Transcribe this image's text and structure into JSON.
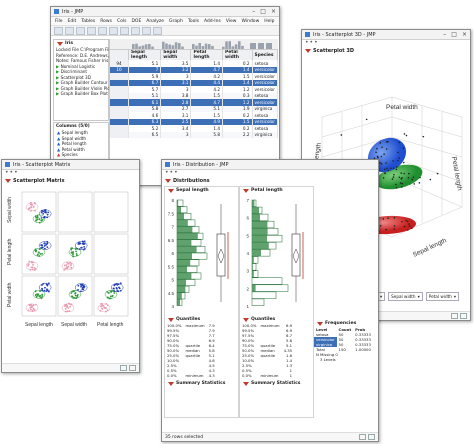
{
  "jmp": {
    "title": "Iris - JMP",
    "menu": [
      "File",
      "Edit",
      "Tables",
      "Rows",
      "Cols",
      "DOE",
      "Analyze",
      "Graph",
      "Tools",
      "Add-Ins",
      "View",
      "Window",
      "Help"
    ],
    "table_name": "Iris",
    "notes": [
      "Locked File C:\\Program Files\\SA",
      "Reference: D.E. Andrews, D.F. an",
      "Notes: Famous Fisher Iris data,"
    ],
    "scripts": [
      "Nominal Logistic",
      "Discriminant",
      "Scatterplot 3D",
      "Graph Builder Contour Plot",
      "Graph Builder Violin Plot",
      "Graph Builder Box Plot"
    ],
    "columns_label": "Columns (5/0)",
    "columns": [
      "Sepal length",
      "Sepal width",
      "Petal length",
      "Petal width",
      "Species"
    ],
    "headers": [
      "Sepal length",
      "Sepal width",
      "Petal length",
      "Petal width",
      "Species"
    ],
    "rows": [
      {
        "n": "94",
        "sl": "5.1",
        "sw": "3.5",
        "pl": "1.4",
        "pw": "0.2",
        "sp": "setosa",
        "sel": false
      },
      {
        "n": "10",
        "sl": "7",
        "sw": "3.2",
        "pl": "4.7",
        "pw": "1.4",
        "sp": "versicolor",
        "sel": true
      },
      {
        "n": "",
        "sl": "5.9",
        "sw": "3",
        "pl": "4.2",
        "pw": "1.5",
        "sp": "versicolor",
        "sel": false
      },
      {
        "n": "",
        "sl": "6.7",
        "sw": "3.1",
        "pl": "4.4",
        "pw": "1.4",
        "sp": "versicolor",
        "sel": true
      },
      {
        "n": "",
        "sl": "5.7",
        "sw": "3",
        "pl": "4.2",
        "pw": "1.2",
        "sp": "versicolor",
        "sel": false
      },
      {
        "n": "",
        "sl": "5.1",
        "sw": "3.8",
        "pl": "1.5",
        "pw": "0.3",
        "sp": "setosa",
        "sel": false
      },
      {
        "n": "",
        "sl": "6.1",
        "sw": "2.8",
        "pl": "4.7",
        "pw": "1.2",
        "sp": "versicolor",
        "sel": true
      },
      {
        "n": "",
        "sl": "5.8",
        "sw": "2.7",
        "pl": "5.1",
        "pw": "1.9",
        "sp": "virginica",
        "sel": false
      },
      {
        "n": "",
        "sl": "4.6",
        "sw": "3.1",
        "pl": "1.5",
        "pw": "0.2",
        "sp": "setosa",
        "sel": false
      },
      {
        "n": "",
        "sl": "6.3",
        "sw": "2.5",
        "pl": "4.9",
        "pw": "1.5",
        "sp": "versicolor",
        "sel": true
      },
      {
        "n": "",
        "sl": "5.2",
        "sw": "3.4",
        "pl": "1.4",
        "pw": "0.2",
        "sp": "setosa",
        "sel": false
      },
      {
        "n": "",
        "sl": "6.5",
        "sw": "3",
        "pl": "5.8",
        "pw": "2.2",
        "sp": "virginica",
        "sel": false
      }
    ]
  },
  "scatter3d": {
    "title": "Iris - Scatterplot 3D - JMP",
    "outline": "Scatterplot 3D",
    "axes": {
      "petal_width": "Petal width",
      "petal_length": "Petal length",
      "sepal_length": "Sepal length"
    },
    "controls": [
      "Data Columns",
      "Sepal length",
      "Sepal width",
      "Petal width"
    ],
    "size_label": "582 × 582"
  },
  "matrix": {
    "title": "Iris - Scatterplot Matrix",
    "outline": "Scatterplot Matrix",
    "row_labels": [
      "Sepal width",
      "Petal length",
      "Petal width"
    ],
    "col_labels": [
      "Sepal length",
      "Sepal width",
      "Petal length"
    ]
  },
  "dist": {
    "title": "Iris - Distribution - JMP",
    "outline": "Distributions",
    "panels": [
      "Sepal length",
      "Petal length"
    ],
    "axis_ticks": [
      "8",
      "7.5",
      "7",
      "6.5",
      "6",
      "5.5",
      "5",
      "4.5",
      "4"
    ],
    "axis_ticks2": [
      "7",
      "6",
      "5",
      "4",
      "3",
      "2",
      "1"
    ],
    "quantiles_label": "Quantiles",
    "summary_label": "Summary Statistics",
    "frequencies_label": "Frequencies",
    "quantiles1": [
      [
        "100.0%",
        "maximum",
        "7.9"
      ],
      [
        "99.5%",
        "",
        "7.9"
      ],
      [
        "97.5%",
        "",
        "7.7"
      ],
      [
        "90.0%",
        "",
        "6.9"
      ],
      [
        "75.0%",
        "quartile",
        "6.4"
      ],
      [
        "50.0%",
        "median",
        "5.8"
      ],
      [
        "25.0%",
        "quartile",
        "5.1"
      ],
      [
        "10.0%",
        "",
        "4.8"
      ],
      [
        "2.5%",
        "",
        "4.5"
      ],
      [
        "0.5%",
        "",
        "4.3"
      ],
      [
        "0.0%",
        "minimum",
        "4.3"
      ]
    ],
    "quantiles2": [
      [
        "100.0%",
        "maximum",
        "6.9"
      ],
      [
        "99.5%",
        "",
        "6.9"
      ],
      [
        "97.5%",
        "",
        "6.7"
      ],
      [
        "90.0%",
        "",
        "5.8"
      ],
      [
        "75.0%",
        "quartile",
        "5.1"
      ],
      [
        "50.0%",
        "median",
        "4.35"
      ],
      [
        "25.0%",
        "quartile",
        "1.6"
      ],
      [
        "10.0%",
        "",
        "1.4"
      ],
      [
        "2.5%",
        "",
        "1.3"
      ],
      [
        "0.5%",
        "",
        "1"
      ],
      [
        "0.0%",
        "minimum",
        "1"
      ]
    ],
    "freq_headers": [
      "Level",
      "Count",
      "Prob"
    ],
    "freq_rows": [
      [
        "setosa",
        "50",
        "0.33333"
      ],
      [
        "versicolor",
        "50",
        "0.33333"
      ],
      [
        "virginica",
        "50",
        "0.33333"
      ],
      [
        "Total",
        "150",
        "1.00000"
      ]
    ],
    "missing": "N Missing    0",
    "levels": "3 Levels",
    "rows_selected": "35 rows selected"
  }
}
